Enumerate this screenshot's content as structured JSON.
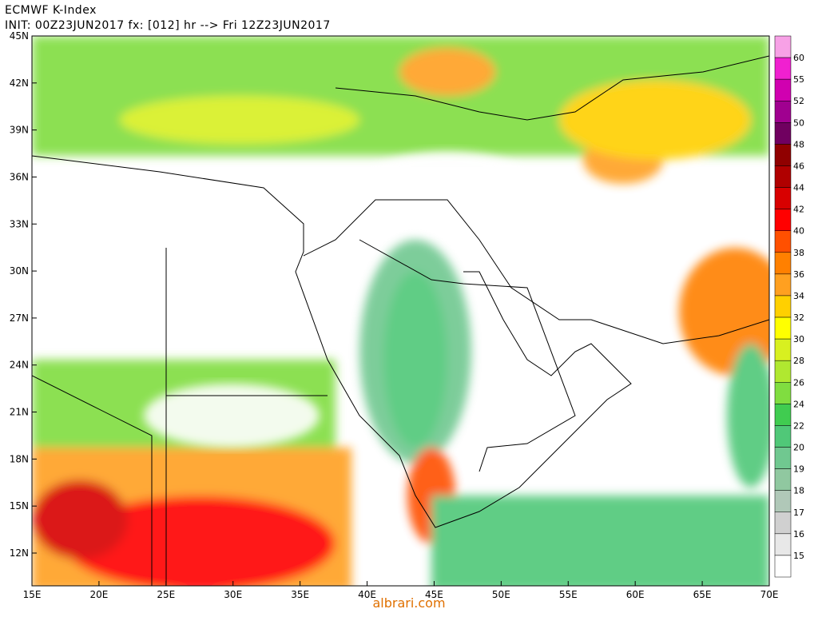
{
  "header": {
    "title": "ECMWF K-Index",
    "subtitle": "INIT: 00Z23JUN2017 fx: [012] hr --> Fri 12Z23JUN2017"
  },
  "axes": {
    "lat_labels": [
      "45N",
      "42N",
      "39N",
      "36N",
      "33N",
      "30N",
      "27N",
      "24N",
      "21N",
      "18N",
      "15N",
      "12N"
    ],
    "lon_labels": [
      "15E",
      "20E",
      "25E",
      "30E",
      "35E",
      "40E",
      "45E",
      "50E",
      "55E",
      "60E",
      "65E",
      "70E"
    ]
  },
  "colorbar": {
    "labels": [
      "60",
      "55",
      "52",
      "50",
      "48",
      "46",
      "44",
      "42",
      "40",
      "38",
      "36",
      "34",
      "32",
      "30",
      "28",
      "26",
      "24",
      "22",
      "20",
      "19",
      "18",
      "17",
      "16",
      "15"
    ],
    "colors": [
      "#f7a1e6",
      "#f020d0",
      "#d000b0",
      "#a00090",
      "#700060",
      "#900000",
      "#b00000",
      "#d80000",
      "#ff0000",
      "#ff5000",
      "#ff8000",
      "#ffa020",
      "#ffd000",
      "#ffff00",
      "#d8f020",
      "#b0e830",
      "#80dd40",
      "#40cc50",
      "#50c878",
      "#70c890",
      "#90c8a0",
      "#b0c8b8",
      "#d0d0d0",
      "#e8e8e8",
      "#ffffff"
    ]
  },
  "watermark": "albrari.com"
}
